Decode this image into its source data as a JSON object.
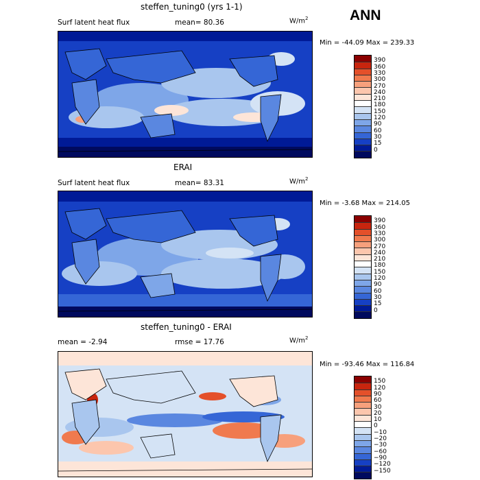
{
  "season": "ANN",
  "units": "W/m",
  "units_sup": "2",
  "panels": [
    {
      "title": "steffen_tuning0 (yrs 1-1)",
      "variable": "Surf latent heat flux",
      "stat": "mean=  80.36",
      "rmse": "",
      "minmax": "Min = -44.09 Max = 239.33"
    },
    {
      "title": "ERAI",
      "variable": "Surf latent heat flux",
      "stat": "mean=  83.31",
      "rmse": "",
      "minmax": "Min =  -3.68 Max = 214.05"
    },
    {
      "title": "steffen_tuning0 - ERAI",
      "variable": "",
      "stat": "mean =   -2.94",
      "rmse": "rmse =   17.76",
      "minmax": "Min = -93.46 Max = 116.84"
    }
  ],
  "chart_data": [
    {
      "type": "heatmap",
      "title": "steffen_tuning0 (yrs 1-1)",
      "colorbar_levels": [
        "390",
        "360",
        "330",
        "300",
        "270",
        "240",
        "210",
        "180",
        "150",
        "120",
        "90",
        "60",
        "30",
        "15",
        "0"
      ],
      "colorbar_colors": [
        "#8b0000",
        "#c8250e",
        "#e4502a",
        "#f07a4e",
        "#f7a07c",
        "#fcc6ad",
        "#fde5d8",
        "#ffffff",
        "#d4e3f5",
        "#a9c6ee",
        "#7ea6e8",
        "#5a87e0",
        "#3566d6",
        "#1640c4",
        "#001a96",
        "#000a5e"
      ],
      "mean": 80.36,
      "min": -44.09,
      "max": 239.33
    },
    {
      "type": "heatmap",
      "title": "ERAI",
      "colorbar_levels": [
        "390",
        "360",
        "330",
        "300",
        "270",
        "240",
        "210",
        "180",
        "150",
        "120",
        "90",
        "60",
        "30",
        "15",
        "0"
      ],
      "colorbar_colors": [
        "#8b0000",
        "#c8250e",
        "#e4502a",
        "#f07a4e",
        "#f7a07c",
        "#fcc6ad",
        "#fde5d8",
        "#ffffff",
        "#d4e3f5",
        "#a9c6ee",
        "#7ea6e8",
        "#5a87e0",
        "#3566d6",
        "#1640c4",
        "#001a96",
        "#000a5e"
      ],
      "mean": 83.31,
      "min": -3.68,
      "max": 214.05
    },
    {
      "type": "heatmap",
      "title": "steffen_tuning0 - ERAI",
      "colorbar_levels": [
        "150",
        "120",
        "90",
        "60",
        "30",
        "20",
        "10",
        "0",
        "−10",
        "−20",
        "−30",
        "−60",
        "−90",
        "−120",
        "−150"
      ],
      "colorbar_colors": [
        "#8b0000",
        "#c8250e",
        "#e4502a",
        "#f07a4e",
        "#f7a07c",
        "#fcc6ad",
        "#fde5d8",
        "#ffffff",
        "#d4e3f5",
        "#a9c6ee",
        "#7ea6e8",
        "#5a87e0",
        "#3566d6",
        "#1640c4",
        "#001a96",
        "#000a5e"
      ],
      "mean": -2.94,
      "rmse": 17.76,
      "min": -93.46,
      "max": 116.84
    }
  ]
}
